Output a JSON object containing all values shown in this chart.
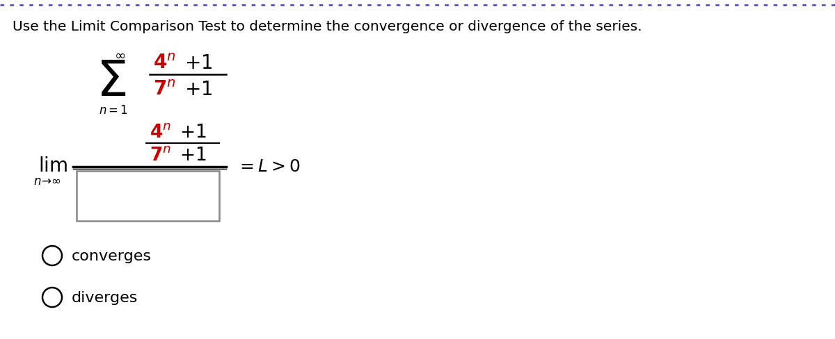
{
  "title": "Use the Limit Comparison Test to determine the convergence or divergence of the series.",
  "title_color": "#000000",
  "title_fontsize": 14.5,
  "background_color": "#ffffff",
  "top_border_color": "#5555bb",
  "red_color": "#cc0000",
  "black_color": "#000000",
  "figsize": [
    12.0,
    4.89
  ],
  "dpi": 100
}
